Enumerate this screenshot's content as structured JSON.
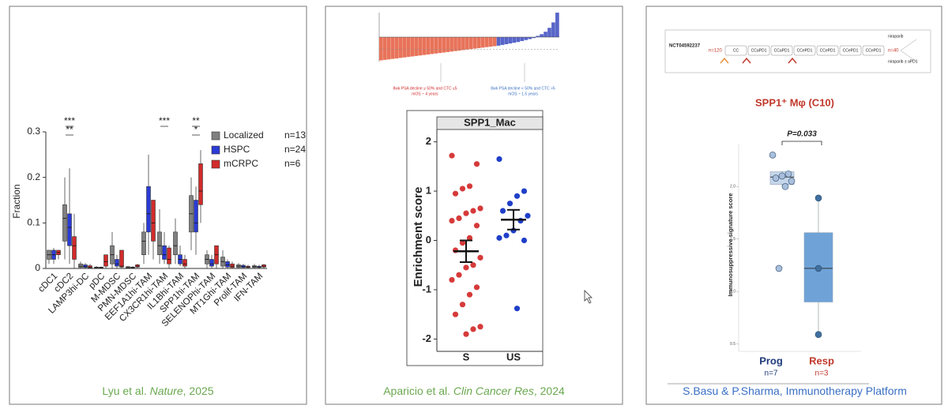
{
  "chart_data": [
    {
      "type": "box",
      "y_label": "Fraction",
      "ylim": [
        0,
        0.3
      ],
      "yticks": [
        0,
        0.1,
        0.2,
        0.3
      ],
      "legend": "upper right",
      "categories": [
        "cDC1",
        "cDC2",
        "LAMP3hi-DC",
        "pDC",
        "M-MDSC",
        "PMN-MDSC",
        "EEF1A1hi-TAM",
        "CX3CR1hi-TAM",
        "IL1Bhi-TAM",
        "SPP1hi-TAM",
        "SELENOPhi-TAM",
        "MT1Ghi-TAM",
        "Prolif-TAM",
        "IFN-TAM"
      ],
      "annotations": [
        null,
        [
          "***",
          "**"
        ],
        null,
        null,
        null,
        null,
        null,
        [
          "***"
        ],
        null,
        [
          "**",
          "*"
        ],
        null,
        null,
        null,
        null
      ],
      "series": [
        {
          "name": "Localized",
          "n_label": "n=13",
          "color": "#808080",
          "boxes": [
            [
              0.01,
              0.02,
              0.03,
              0.04,
              0.04
            ],
            [
              0.02,
              0.06,
              0.11,
              0.14,
              0.2
            ],
            [
              0,
              0.002,
              0.005,
              0.01,
              0.015
            ],
            [
              0,
              0.001,
              0.002,
              0.003,
              0.005
            ],
            [
              0,
              0.01,
              0.03,
              0.05,
              0.08
            ],
            [
              0,
              0.001,
              0.002,
              0.004,
              0.005
            ],
            [
              0.01,
              0.03,
              0.06,
              0.08,
              0.1
            ],
            [
              0.01,
              0.03,
              0.05,
              0.08,
              0.13
            ],
            [
              0.01,
              0.03,
              0.05,
              0.08,
              0.11
            ],
            [
              0.04,
              0.08,
              0.12,
              0.16,
              0.2
            ],
            [
              0,
              0.01,
              0.02,
              0.03,
              0.04
            ],
            [
              0,
              0.005,
              0.015,
              0.025,
              0.04
            ],
            [
              0,
              0.002,
              0.005,
              0.008,
              0.012
            ],
            [
              0,
              0.002,
              0.004,
              0.006,
              0.01
            ]
          ]
        },
        {
          "name": "HSPC",
          "n_label": "n=24",
          "color": "#2b3bd6",
          "boxes": [
            [
              0.01,
              0.02,
              0.03,
              0.04,
              0.045
            ],
            [
              0.01,
              0.05,
              0.09,
              0.12,
              0.22
            ],
            [
              0,
              0.002,
              0.004,
              0.008,
              0.012
            ],
            [
              0,
              0.001,
              0.002,
              0.003,
              0.004
            ],
            [
              0,
              0.005,
              0.01,
              0.02,
              0.03
            ],
            [
              0,
              0.001,
              0.002,
              0.003,
              0.005
            ],
            [
              0.03,
              0.08,
              0.12,
              0.18,
              0.25
            ],
            [
              0.01,
              0.02,
              0.03,
              0.05,
              0.08
            ],
            [
              0.005,
              0.01,
              0.02,
              0.03,
              0.05
            ],
            [
              0.03,
              0.08,
              0.1,
              0.15,
              0.18
            ],
            [
              0,
              0.005,
              0.01,
              0.02,
              0.03
            ],
            [
              0,
              0.003,
              0.008,
              0.015,
              0.02
            ],
            [
              0,
              0.002,
              0.004,
              0.007,
              0.01
            ],
            [
              0,
              0.002,
              0.003,
              0.005,
              0.008
            ]
          ]
        },
        {
          "name": "mCRPC",
          "n_label": "n=6",
          "color": "#d12b2b",
          "boxes": [
            [
              0.02,
              0.03,
              0.035,
              0.04,
              0.04
            ],
            [
              0,
              0.02,
              0.05,
              0.07,
              0.12
            ],
            [
              0,
              0.001,
              0.003,
              0.006,
              0.01
            ],
            [
              0,
              0.005,
              0.015,
              0.03,
              0.03
            ],
            [
              0,
              0.003,
              0.005,
              0.04,
              0.04
            ],
            [
              0,
              0.003,
              0.005,
              0.008,
              0.01
            ],
            [
              0.02,
              0.06,
              0.1,
              0.15,
              0.15
            ],
            [
              0,
              0.01,
              0.02,
              0.045,
              0.05
            ],
            [
              0,
              0.005,
              0.01,
              0.02,
              0.03
            ],
            [
              0.1,
              0.14,
              0.17,
              0.23,
              0.26
            ],
            [
              0,
              0.01,
              0.03,
              0.05,
              0.05
            ],
            [
              0,
              0.002,
              0.005,
              0.01,
              0.015
            ],
            [
              0,
              0.002,
              0.003,
              0.005,
              0.008
            ],
            [
              0,
              0.003,
              0.005,
              0.008,
              0.01
            ]
          ]
        }
      ]
    },
    {
      "type": "waterfall",
      "ylim": [
        -100,
        100
      ],
      "series": [
        {
          "color": "#e8735a",
          "values": [
            -95,
            -93,
            -91,
            -89,
            -87,
            -85,
            -83,
            -81,
            -79,
            -77,
            -75,
            -73,
            -71,
            -69,
            -67,
            -65,
            -63,
            -61,
            -59,
            -57,
            -55,
            -53,
            -51,
            -49,
            -47,
            -45,
            -43,
            -41,
            -39,
            -37
          ]
        },
        {
          "color": "#5865c8",
          "values": [
            -35,
            -32,
            -29,
            -26,
            -23,
            -20,
            -16,
            -12,
            -8,
            -4,
            5,
            12,
            22,
            38,
            60,
            100
          ]
        }
      ],
      "annotations": [
        {
          "color": "#d12b2b",
          "lines": [
            "8wk PSA decline ≥ 50% and CTC ≤5",
            "mOS ~ 4 years"
          ]
        },
        {
          "color": "#3a6fc4",
          "lines": [
            "8wk PSA decline < 50% and CTC >5",
            "mOS ~ 1.5 years"
          ]
        }
      ]
    },
    {
      "type": "scatter",
      "title": "SPP1_Mac",
      "y_label": "Enrichment score",
      "ylim": [
        -2.25,
        2.25
      ],
      "yticks": [
        -2,
        -1,
        0,
        1,
        2
      ],
      "categories": [
        "S",
        "US"
      ],
      "series": [
        {
          "color": "#d63a3a",
          "values": [
            1.72,
            1.55,
            1.1,
            1.05,
            0.95,
            0.65,
            0.6,
            0.55,
            0.45,
            0.4,
            0.3,
            0.05,
            -0.05,
            -0.2,
            -0.35,
            -0.5,
            -0.55,
            -0.7,
            -0.8,
            -0.95,
            -1.1,
            -1.3,
            -1.5,
            -1.75,
            -1.8,
            -1.9
          ],
          "mean": -0.22,
          "error": 0.22
        },
        {
          "color": "#1f3fc9",
          "values": [
            1.65,
            1.0,
            0.9,
            0.75,
            0.6,
            0.5,
            0.4,
            0.2,
            0.1,
            0.05,
            0.0,
            -1.38
          ],
          "mean": 0.42,
          "error": 0.2
        }
      ]
    },
    {
      "type": "box",
      "title": "SPP1⁺ Mφ (C10)",
      "y_label": "Immunosuppressive signature score",
      "ylim": [
        0.43,
        2.4
      ],
      "yticks": [
        {
          "value": 0.5,
          "label": "0.5"
        },
        {
          "value": 1,
          "label": "1.0"
        },
        {
          "value": 1.5,
          "label": "1.5"
        },
        {
          "value": 2,
          "label": "2.0"
        }
      ],
      "p_value": "P=0.033",
      "categories": [
        "Prog",
        "Resp"
      ],
      "n_labels": [
        "n=7",
        "n=3"
      ],
      "label_colors": [
        "#1f3a7a",
        "#c0392b"
      ],
      "series": [
        {
          "color": "#c6d6ea",
          "point_color": "#a9bfdc",
          "box": [
            2.0,
            2.02,
            2.09,
            2.14,
            2.15
          ],
          "points": [
            2.3,
            2.12,
            2.1,
            2.08,
            2.05,
            2.0,
            1.22
          ]
        },
        {
          "color": "#6fa3d8",
          "point_color": "#3f6f9f",
          "box": [
            0.59,
            0.9,
            1.22,
            1.56,
            1.89
          ],
          "points": [
            1.89,
            1.22,
            0.59
          ]
        }
      ]
    }
  ],
  "schema": {
    "id": "NCT04592237",
    "n_total": "n=120",
    "arms": [
      "CC",
      "CCaPD1",
      "CCaPD1",
      "CCePD1",
      "CCePD1",
      "CCePD1",
      "CCePD1"
    ],
    "n_arm": "n=40",
    "drugs": [
      "niraparib",
      "niraparib ± aPD1"
    ]
  },
  "captions": [
    [
      "Lyu et al. ",
      "Nature",
      ", 2025"
    ],
    [
      "Aparicio et al. ",
      "Clin Cancer Res",
      ", 2024"
    ],
    [
      "S.Basu & P.Sharma, Immunotherapy Platform"
    ]
  ]
}
